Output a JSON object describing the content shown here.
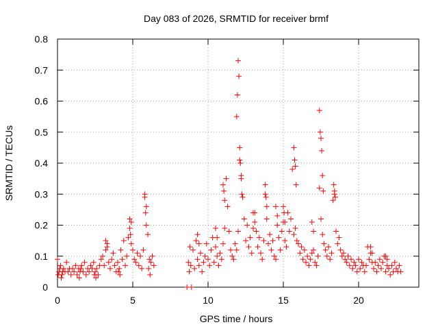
{
  "chart_data": {
    "type": "scatter",
    "title": "Day 083 of 2026, SRMTID for receiver brmf",
    "xlabel": "GPS time / hours",
    "ylabel": "SRMTID / TECUs",
    "xlim": [
      0,
      24
    ],
    "ylim": [
      0,
      0.8
    ],
    "xticks": [
      0,
      5,
      10,
      15,
      20
    ],
    "xtick_labels": [
      "0",
      "5",
      "10",
      "15",
      "20"
    ],
    "yticks": [
      0,
      0.1,
      0.2,
      0.3,
      0.4,
      0.5,
      0.6,
      0.7,
      0.8
    ],
    "ytick_labels": [
      "0",
      "0.1",
      "0.2",
      "0.3",
      "0.4",
      "0.5",
      "0.6",
      "0.7",
      "0.8"
    ],
    "grid": true,
    "marker": "+",
    "series": [
      {
        "name": "brmf",
        "color": "#ff0000",
        "x": [
          0.0,
          0.1,
          0.2,
          0.3,
          0.4,
          0.5,
          0.6,
          0.7,
          0.8,
          0.9,
          1.0,
          1.1,
          1.2,
          1.3,
          1.4,
          1.5,
          1.6,
          1.7,
          1.8,
          1.9,
          2.0,
          2.1,
          2.2,
          2.3,
          2.4,
          2.5,
          2.6,
          2.7,
          2.8,
          2.9,
          3.0,
          3.1,
          3.2,
          3.3,
          3.4,
          3.5,
          3.6,
          3.7,
          3.8,
          3.9,
          4.0,
          4.1,
          4.2,
          4.3,
          4.4,
          4.5,
          4.6,
          4.7,
          4.8,
          4.9,
          5.0,
          5.1,
          5.2,
          5.3,
          5.4,
          5.5,
          5.6,
          5.7,
          5.8,
          5.9,
          6.0,
          6.1,
          6.2,
          6.3,
          6.4,
          8.6,
          8.9,
          8.7,
          8.8,
          9.0,
          9.1,
          9.2,
          9.3,
          9.4,
          9.5,
          9.6,
          9.7,
          9.8,
          9.9,
          10.0,
          10.1,
          10.2,
          10.3,
          10.4,
          10.5,
          10.6,
          10.7,
          10.8,
          10.9,
          11.0,
          11.1,
          11.2,
          11.3,
          11.4,
          11.5,
          11.6,
          11.7,
          11.8,
          11.9,
          12.0,
          12.1,
          12.2,
          12.3,
          12.4,
          12.5,
          12.6,
          12.7,
          12.8,
          12.9,
          13.0,
          13.1,
          13.2,
          13.3,
          13.4,
          13.5,
          13.6,
          13.7,
          13.8,
          13.9,
          14.0,
          14.1,
          14.2,
          14.3,
          14.4,
          14.5,
          14.6,
          14.7,
          14.8,
          14.9,
          15.0,
          15.1,
          15.2,
          15.3,
          15.4,
          15.5,
          15.6,
          15.7,
          15.8,
          15.9,
          16.0,
          16.1,
          16.2,
          16.3,
          16.4,
          16.5,
          16.6,
          16.7,
          16.8,
          16.9,
          17.0,
          17.1,
          17.2,
          17.3,
          17.4,
          17.5,
          17.6,
          17.7,
          17.8,
          17.9,
          18.0,
          18.1,
          18.2,
          18.3,
          18.4,
          18.5,
          18.6,
          18.7,
          18.8,
          18.9,
          19.0,
          19.1,
          19.2,
          19.3,
          19.4,
          19.5,
          19.6,
          19.7,
          19.8,
          19.9,
          20.0,
          20.1,
          20.2,
          20.3,
          20.4,
          20.5,
          20.6,
          20.7,
          20.8,
          20.9,
          21.0,
          21.1,
          21.2,
          21.3,
          21.4,
          21.5,
          21.6,
          21.7,
          21.8,
          21.9,
          22.0,
          22.1,
          22.2,
          22.3,
          22.4,
          22.5,
          22.6,
          22.7,
          22.8,
          11.9,
          11.95,
          12.0,
          12.05,
          12.1,
          12.15,
          12.2,
          12.25,
          17.4,
          17.45,
          17.5,
          17.55,
          17.6,
          17.65,
          15.7,
          15.75,
          15.8,
          15.85,
          5.8,
          5.85,
          5.9,
          4.8,
          4.85,
          4.9,
          11.0,
          11.05,
          11.1,
          18.35,
          18.4,
          18.45,
          13.8,
          13.85,
          13.9,
          15.0,
          15.05,
          15.1,
          20.8,
          20.9,
          3.2,
          3.3,
          9.3,
          9.4,
          21.8,
          21.9,
          13.0,
          13.1,
          16.9,
          17.0,
          14.5,
          14.6,
          10.5,
          10.6,
          0.05,
          0.15,
          0.25,
          0.35,
          1.45,
          1.55,
          2.45,
          2.55,
          4.05,
          4.15,
          6.05,
          6.15,
          8.75,
          8.85
        ],
        "y": [
          0.09,
          0.05,
          0.07,
          0.04,
          0.06,
          0.05,
          0.08,
          0.05,
          0.06,
          0.04,
          0.06,
          0.05,
          0.07,
          0.04,
          0.06,
          0.05,
          0.07,
          0.05,
          0.08,
          0.04,
          0.06,
          0.05,
          0.07,
          0.06,
          0.08,
          0.05,
          0.06,
          0.04,
          0.07,
          0.09,
          0.1,
          0.07,
          0.12,
          0.14,
          0.08,
          0.06,
          0.09,
          0.11,
          0.07,
          0.05,
          0.08,
          0.06,
          0.12,
          0.09,
          0.15,
          0.07,
          0.1,
          0.16,
          0.19,
          0.21,
          0.12,
          0.09,
          0.08,
          0.11,
          0.07,
          0.1,
          0.06,
          0.12,
          0.29,
          0.26,
          0.17,
          0.09,
          0.08,
          0.1,
          0.07,
          0.0,
          0.0,
          0.08,
          0.13,
          0.12,
          0.06,
          0.15,
          0.09,
          0.07,
          0.11,
          0.05,
          0.08,
          0.1,
          0.14,
          0.09,
          0.07,
          0.12,
          0.16,
          0.08,
          0.13,
          0.1,
          0.07,
          0.11,
          0.09,
          0.14,
          0.19,
          0.35,
          0.26,
          0.18,
          0.12,
          0.1,
          0.09,
          0.14,
          0.12,
          0.18,
          0.41,
          0.36,
          0.29,
          0.22,
          0.15,
          0.2,
          0.13,
          0.16,
          0.11,
          0.19,
          0.24,
          0.18,
          0.13,
          0.16,
          0.11,
          0.09,
          0.15,
          0.3,
          0.22,
          0.14,
          0.17,
          0.12,
          0.15,
          0.1,
          0.09,
          0.2,
          0.16,
          0.12,
          0.18,
          0.21,
          0.15,
          0.13,
          0.24,
          0.18,
          0.22,
          0.38,
          0.17,
          0.19,
          0.15,
          0.14,
          0.11,
          0.13,
          0.09,
          0.12,
          0.08,
          0.1,
          0.07,
          0.09,
          0.11,
          0.12,
          0.08,
          0.07,
          0.1,
          0.32,
          0.22,
          0.17,
          0.14,
          0.12,
          0.1,
          0.13,
          0.09,
          0.11,
          0.28,
          0.3,
          0.18,
          0.14,
          0.16,
          0.12,
          0.1,
          0.11,
          0.09,
          0.08,
          0.1,
          0.07,
          0.09,
          0.06,
          0.08,
          0.07,
          0.05,
          0.09,
          0.06,
          0.08,
          0.07,
          0.05,
          0.07,
          0.13,
          0.09,
          0.11,
          0.08,
          0.06,
          0.08,
          0.05,
          0.07,
          0.09,
          0.06,
          0.08,
          0.1,
          0.05,
          0.07,
          0.06,
          0.04,
          0.07,
          0.05,
          0.08,
          0.06,
          0.05,
          0.07,
          0.05,
          0.55,
          0.62,
          0.73,
          0.68,
          0.45,
          0.4,
          0.35,
          0.3,
          0.57,
          0.5,
          0.48,
          0.44,
          0.36,
          0.31,
          0.45,
          0.41,
          0.39,
          0.33,
          0.3,
          0.24,
          0.2,
          0.22,
          0.17,
          0.14,
          0.33,
          0.31,
          0.28,
          0.33,
          0.31,
          0.29,
          0.33,
          0.29,
          0.26,
          0.26,
          0.24,
          0.21,
          0.13,
          0.11,
          0.15,
          0.13,
          0.17,
          0.14,
          0.1,
          0.09,
          0.24,
          0.21,
          0.21,
          0.18,
          0.26,
          0.23,
          0.19,
          0.16,
          0.04,
          0.06,
          0.03,
          0.05,
          0.03,
          0.06,
          0.04,
          0.03,
          0.05,
          0.04,
          0.06,
          0.04,
          0.05,
          0.07
        ]
      }
    ]
  }
}
